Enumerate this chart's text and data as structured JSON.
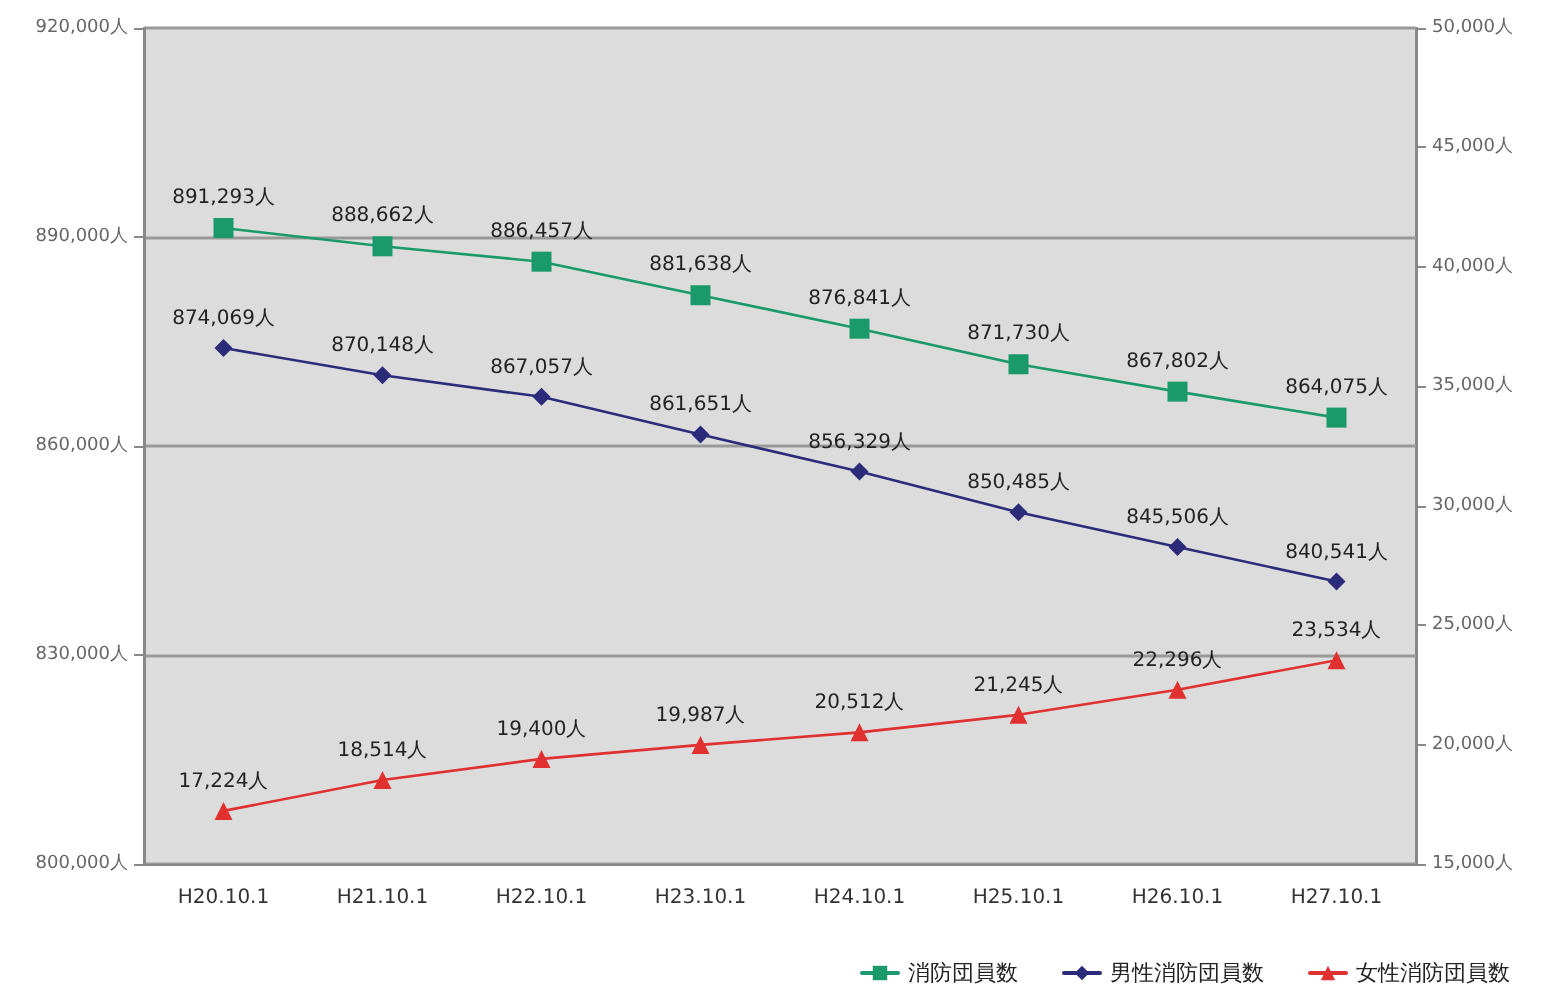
{
  "chart_data": {
    "type": "line",
    "categories": [
      "H20.10.1",
      "H21.10.1",
      "H22.10.1",
      "H23.10.1",
      "H24.10.1",
      "H25.10.1",
      "H26.10.1",
      "H27.10.1"
    ],
    "series": [
      {
        "name": "消防団員数",
        "color": "#1a9a6a",
        "marker": "square",
        "values": [
          891293,
          888662,
          886457,
          881638,
          876841,
          871730,
          867802,
          864075
        ],
        "value_labels": [
          "891,293人",
          "888,662人",
          "886,457人",
          "881,638人",
          "876,841人",
          "871,730人",
          "867,802人",
          "864,075人"
        ]
      },
      {
        "name": "男性消防団員数",
        "color": "#2b2b7a",
        "marker": "diamond",
        "values": [
          874069,
          870148,
          867057,
          861651,
          856329,
          850485,
          845506,
          840541
        ],
        "value_labels": [
          "874,069人",
          "870,148人",
          "867,057人",
          "861,651人",
          "856,329人",
          "850,485人",
          "845,506人",
          "840,541人"
        ]
      },
      {
        "name": "女性消防団員数",
        "color": "#e03030",
        "marker": "triangle",
        "axis": "y2",
        "values": [
          17224,
          18514,
          19400,
          19987,
          20512,
          21245,
          22296,
          23534
        ],
        "value_labels": [
          "17,224人",
          "18,514人",
          "19,400人",
          "19,987人",
          "20,512人",
          "21,245人",
          "22,296人",
          "23,534人"
        ]
      }
    ],
    "ylim": [
      800000,
      920000
    ],
    "yticks": [
      {
        "value": 800000,
        "label": "800,000人"
      },
      {
        "value": 830000,
        "label": "830,000人"
      },
      {
        "value": 860000,
        "label": "860,000人"
      },
      {
        "value": 890000,
        "label": "890,000人"
      },
      {
        "value": 920000,
        "label": "920,000人"
      }
    ],
    "y2lim": [
      15000,
      50000
    ],
    "y2ticks": [
      {
        "value": 15000,
        "label": "15,000人"
      },
      {
        "value": 20000,
        "label": "20,000人"
      },
      {
        "value": 25000,
        "label": "25,000人"
      },
      {
        "value": 30000,
        "label": "30,000人"
      },
      {
        "value": 35000,
        "label": "35,000人"
      },
      {
        "value": 40000,
        "label": "40,000人"
      },
      {
        "value": 45000,
        "label": "45,000人"
      },
      {
        "value": 50000,
        "label": "50,000人"
      }
    ],
    "grid": "y",
    "legend": "bottom right"
  }
}
